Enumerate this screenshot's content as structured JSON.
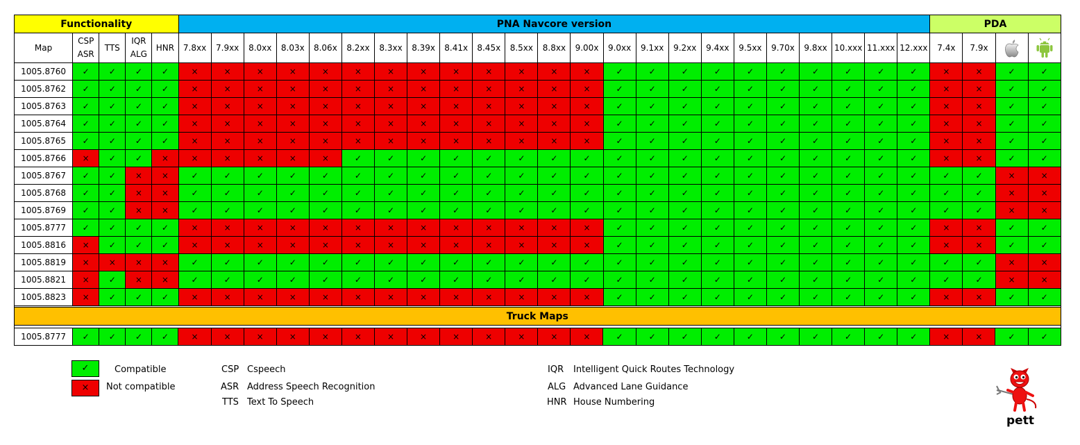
{
  "colors": {
    "functionality_header": "#ffff00",
    "pna_header": "#00b0f0",
    "pda_header": "#ccff66",
    "truck_header": "#ffc000",
    "compatible": "#00ee00",
    "not_compatible": "#ee0000"
  },
  "groups": {
    "functionality": "Functionality",
    "pna": "PNA Navcore version",
    "pda": "PDA",
    "truck": "Truck Maps"
  },
  "columns": {
    "map": "Map",
    "functionality": [
      {
        "line1": "CSP",
        "line2": "ASR"
      },
      {
        "line1": "TTS",
        "line2": ""
      },
      {
        "line1": "IQR",
        "line2": "ALG"
      },
      {
        "line1": "HNR",
        "line2": ""
      }
    ],
    "pna": [
      "7.8xx",
      "7.9xx",
      "8.0xx",
      "8.03x",
      "8.06x",
      "8.2xx",
      "8.3xx",
      "8.39x",
      "8.41x",
      "8.45x",
      "8.5xx",
      "8.8xx",
      "9.00x",
      "9.0xx",
      "9.1xx",
      "9.2xx",
      "9.4xx",
      "9.5xx",
      "9.70x",
      "9.8xx",
      "10.xxx",
      "11.xxx",
      "12.xxx"
    ],
    "pda": [
      "7.4x",
      "7.9x"
    ],
    "pda_icons": [
      "apple-logo-icon",
      "android-logo-icon"
    ]
  },
  "symbols": {
    "yes": "✓",
    "no": "×"
  },
  "chart_data": {
    "type": "table",
    "title": "",
    "value_meaning": {
      "1": "Compatible",
      "0": "Not compatible"
    },
    "columns": [
      "CSP ASR",
      "TTS",
      "IQR ALG",
      "HNR",
      "7.8xx",
      "7.9xx",
      "8.0xx",
      "8.03x",
      "8.06x",
      "8.2xx",
      "8.3xx",
      "8.39x",
      "8.41x",
      "8.45x",
      "8.5xx",
      "8.8xx",
      "9.00x",
      "9.0xx",
      "9.1xx",
      "9.2xx",
      "9.4xx",
      "9.5xx",
      "9.70x",
      "9.8xx",
      "10.xxx",
      "11.xxx",
      "12.xxx",
      "7.4x",
      "7.9x",
      "Apple",
      "Android"
    ],
    "rows": [
      {
        "map": "1005.8760",
        "values": [
          1,
          1,
          1,
          1,
          0,
          0,
          0,
          0,
          0,
          0,
          0,
          0,
          0,
          0,
          0,
          0,
          0,
          1,
          1,
          1,
          1,
          1,
          1,
          1,
          1,
          1,
          1,
          0,
          0,
          1,
          1
        ]
      },
      {
        "map": "1005.8762",
        "values": [
          1,
          1,
          1,
          1,
          0,
          0,
          0,
          0,
          0,
          0,
          0,
          0,
          0,
          0,
          0,
          0,
          0,
          1,
          1,
          1,
          1,
          1,
          1,
          1,
          1,
          1,
          1,
          0,
          0,
          1,
          1
        ]
      },
      {
        "map": "1005.8763",
        "values": [
          1,
          1,
          1,
          1,
          0,
          0,
          0,
          0,
          0,
          0,
          0,
          0,
          0,
          0,
          0,
          0,
          0,
          1,
          1,
          1,
          1,
          1,
          1,
          1,
          1,
          1,
          1,
          0,
          0,
          1,
          1
        ]
      },
      {
        "map": "1005.8764",
        "values": [
          1,
          1,
          1,
          1,
          0,
          0,
          0,
          0,
          0,
          0,
          0,
          0,
          0,
          0,
          0,
          0,
          0,
          1,
          1,
          1,
          1,
          1,
          1,
          1,
          1,
          1,
          1,
          0,
          0,
          1,
          1
        ]
      },
      {
        "map": "1005.8765",
        "values": [
          1,
          1,
          1,
          1,
          0,
          0,
          0,
          0,
          0,
          0,
          0,
          0,
          0,
          0,
          0,
          0,
          0,
          1,
          1,
          1,
          1,
          1,
          1,
          1,
          1,
          1,
          1,
          0,
          0,
          1,
          1
        ]
      },
      {
        "map": "1005.8766",
        "values": [
          0,
          1,
          1,
          0,
          0,
          0,
          0,
          0,
          0,
          1,
          1,
          1,
          1,
          1,
          1,
          1,
          1,
          1,
          1,
          1,
          1,
          1,
          1,
          1,
          1,
          1,
          1,
          0,
          0,
          1,
          1
        ]
      },
      {
        "map": "1005.8767",
        "values": [
          1,
          1,
          0,
          0,
          1,
          1,
          1,
          1,
          1,
          1,
          1,
          1,
          1,
          1,
          1,
          1,
          1,
          1,
          1,
          1,
          1,
          1,
          1,
          1,
          1,
          1,
          1,
          1,
          1,
          0,
          0
        ]
      },
      {
        "map": "1005.8768",
        "values": [
          1,
          1,
          0,
          0,
          1,
          1,
          1,
          1,
          1,
          1,
          1,
          1,
          1,
          1,
          1,
          1,
          1,
          1,
          1,
          1,
          1,
          1,
          1,
          1,
          1,
          1,
          1,
          1,
          1,
          0,
          0
        ]
      },
      {
        "map": "1005.8769",
        "values": [
          1,
          1,
          0,
          0,
          1,
          1,
          1,
          1,
          1,
          1,
          1,
          1,
          1,
          1,
          1,
          1,
          1,
          1,
          1,
          1,
          1,
          1,
          1,
          1,
          1,
          1,
          1,
          1,
          1,
          0,
          0
        ]
      },
      {
        "map": "1005.8777",
        "values": [
          1,
          1,
          1,
          1,
          0,
          0,
          0,
          0,
          0,
          0,
          0,
          0,
          0,
          0,
          0,
          0,
          0,
          1,
          1,
          1,
          1,
          1,
          1,
          1,
          1,
          1,
          1,
          0,
          0,
          1,
          1
        ]
      },
      {
        "map": "1005.8816",
        "values": [
          0,
          1,
          1,
          1,
          0,
          0,
          0,
          0,
          0,
          0,
          0,
          0,
          0,
          0,
          0,
          0,
          0,
          1,
          1,
          1,
          1,
          1,
          1,
          1,
          1,
          1,
          1,
          0,
          0,
          1,
          1
        ]
      },
      {
        "map": "1005.8819",
        "values": [
          0,
          0,
          0,
          0,
          1,
          1,
          1,
          1,
          1,
          1,
          1,
          1,
          1,
          1,
          1,
          1,
          1,
          1,
          1,
          1,
          1,
          1,
          1,
          1,
          1,
          1,
          1,
          1,
          1,
          0,
          0
        ]
      },
      {
        "map": "1005.8821",
        "values": [
          0,
          1,
          0,
          0,
          1,
          1,
          1,
          1,
          1,
          1,
          1,
          1,
          1,
          1,
          1,
          1,
          1,
          1,
          1,
          1,
          1,
          1,
          1,
          1,
          1,
          1,
          1,
          1,
          1,
          0,
          0
        ]
      },
      {
        "map": "1005.8823",
        "values": [
          0,
          1,
          1,
          1,
          0,
          0,
          0,
          0,
          0,
          0,
          0,
          0,
          0,
          0,
          0,
          0,
          0,
          1,
          1,
          1,
          1,
          1,
          1,
          1,
          1,
          1,
          1,
          0,
          0,
          1,
          1
        ]
      }
    ],
    "truck_rows": [
      {
        "map": "1005.8777",
        "values": [
          1,
          1,
          1,
          1,
          0,
          0,
          0,
          0,
          0,
          0,
          0,
          0,
          0,
          0,
          0,
          0,
          0,
          1,
          1,
          1,
          1,
          1,
          1,
          1,
          1,
          1,
          1,
          0,
          0,
          1,
          1
        ]
      }
    ]
  },
  "legend": {
    "compatible": "Compatible",
    "not_compatible": "Not compatible"
  },
  "abbreviations": [
    {
      "code": "CSP",
      "desc": "Cspeech"
    },
    {
      "code": "ASR",
      "desc": "Address Speech Recognition"
    },
    {
      "code": "TTS",
      "desc": "Text To Speech"
    },
    {
      "code": "IQR",
      "desc": "Intelligent Quick Routes Technology"
    },
    {
      "code": "ALG",
      "desc": "Advanced Lane Guidance"
    },
    {
      "code": "HNR",
      "desc": "House Numbering"
    }
  ],
  "brand": {
    "name": "pett",
    "mascot_icon": "devil-mascot-icon"
  }
}
